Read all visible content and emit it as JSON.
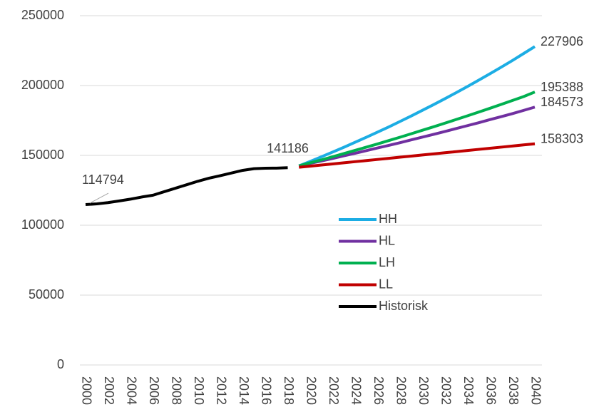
{
  "chart_data": {
    "type": "line",
    "x": [
      2000,
      2001,
      2002,
      2003,
      2004,
      2005,
      2006,
      2007,
      2008,
      2009,
      2010,
      2011,
      2012,
      2013,
      2014,
      2015,
      2016,
      2017,
      2018,
      2019,
      2020,
      2021,
      2022,
      2023,
      2024,
      2025,
      2026,
      2027,
      2028,
      2029,
      2030,
      2031,
      2032,
      2033,
      2034,
      2035,
      2036,
      2037,
      2038,
      2039,
      2040
    ],
    "series": [
      {
        "name": "HH",
        "color": "#1cade4",
        "values": [
          null,
          null,
          null,
          null,
          null,
          null,
          null,
          null,
          null,
          null,
          null,
          null,
          null,
          null,
          null,
          null,
          null,
          null,
          null,
          142500,
          145700,
          149000,
          152400,
          155800,
          159400,
          163000,
          166700,
          170400,
          174300,
          178200,
          182300,
          186400,
          190600,
          194900,
          199300,
          203800,
          208400,
          213100,
          217900,
          222900,
          227906
        ]
      },
      {
        "name": "HL",
        "color": "#7030a0",
        "values": [
          null,
          null,
          null,
          null,
          null,
          null,
          null,
          null,
          null,
          null,
          null,
          null,
          null,
          null,
          null,
          null,
          null,
          null,
          null,
          142500,
          144300,
          146000,
          147800,
          149700,
          151500,
          153400,
          155300,
          157200,
          159100,
          161100,
          163100,
          165100,
          167100,
          169200,
          171300,
          173400,
          175600,
          177700,
          179900,
          182200,
          184573
        ]
      },
      {
        "name": "LH",
        "color": "#00b050",
        "values": [
          null,
          null,
          null,
          null,
          null,
          null,
          null,
          null,
          null,
          null,
          null,
          null,
          null,
          null,
          null,
          null,
          null,
          null,
          null,
          142500,
          144700,
          146800,
          149000,
          151300,
          153600,
          155900,
          158200,
          160600,
          163000,
          165500,
          168000,
          170500,
          173100,
          175700,
          178300,
          181000,
          183700,
          186500,
          189300,
          192100,
          195388
        ]
      },
      {
        "name": "LL",
        "color": "#c00000",
        "values": [
          null,
          null,
          null,
          null,
          null,
          null,
          null,
          null,
          null,
          null,
          null,
          null,
          null,
          null,
          null,
          null,
          null,
          null,
          null,
          141500,
          142300,
          143100,
          143900,
          144700,
          145500,
          146300,
          147100,
          147900,
          148700,
          149500,
          150300,
          151100,
          151900,
          152700,
          153500,
          154300,
          155100,
          155900,
          156700,
          157500,
          158303
        ]
      },
      {
        "name": "Historisk",
        "color": "#000000",
        "values": [
          114794,
          115300,
          116200,
          117400,
          118700,
          120200,
          121500,
          124000,
          126500,
          129000,
          131500,
          133700,
          135500,
          137400,
          139300,
          140500,
          140800,
          140900,
          141186,
          null,
          null,
          null,
          null,
          null,
          null,
          null,
          null,
          null,
          null,
          null,
          null,
          null,
          null,
          null,
          null,
          null,
          null,
          null,
          null,
          null,
          null
        ]
      }
    ],
    "xlim": [
      2000,
      2040
    ],
    "xticks": [
      2000,
      2002,
      2004,
      2006,
      2008,
      2010,
      2012,
      2014,
      2016,
      2018,
      2020,
      2022,
      2024,
      2026,
      2028,
      2030,
      2032,
      2034,
      2036,
      2038,
      2040
    ],
    "ylim": [
      0,
      250000
    ],
    "yticks": [
      0,
      50000,
      100000,
      150000,
      200000,
      250000
    ],
    "grid": true
  }
}
